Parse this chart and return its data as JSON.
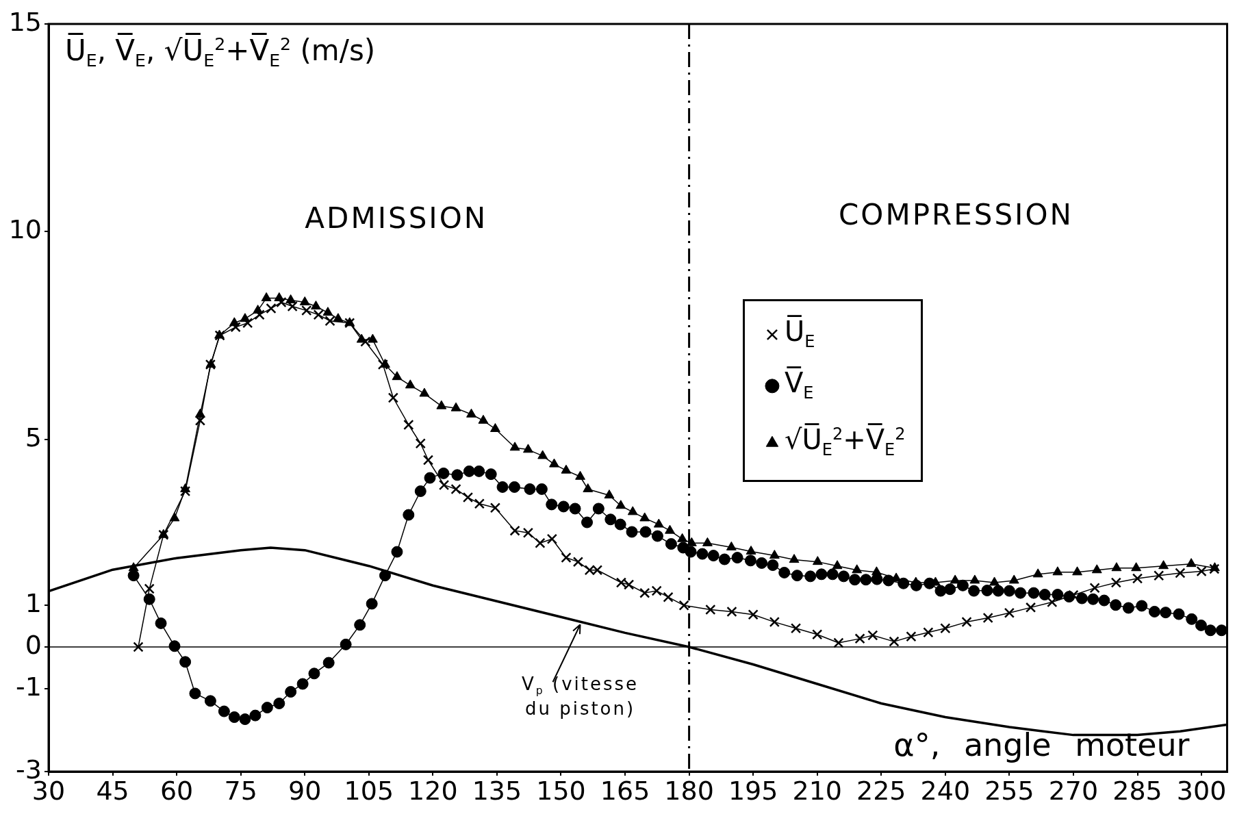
{
  "chart_data": {
    "type": "line",
    "ylabel": "U̅$_{E}$, V̅$_{E}$, √U̅$_{E}$$^{2}$+V̅$_{E}$$^{2}$ (m/s)",
    "xlabel": "α°, angle moteur",
    "annotations": [
      "ADMISSION",
      "COMPRESSION"
    ],
    "xlim": [
      30,
      306
    ],
    "xticks": [
      30,
      45,
      60,
      75,
      90,
      105,
      120,
      135,
      150,
      165,
      180,
      195,
      210,
      225,
      240,
      255,
      270,
      285,
      300
    ],
    "ylim": [
      -3,
      15
    ],
    "yticks": [
      15,
      10,
      5,
      1,
      0,
      -1,
      -3
    ],
    "grid": false,
    "legend": "right",
    "line_style": "solid",
    "ref_lines": [
      {
        "axis": "x",
        "value": 180,
        "line_style": "dashed",
        "color": "#000000"
      },
      {
        "axis": "y",
        "value": 0,
        "color": "#000000"
      }
    ],
    "series": [
      {
        "name": "U̅$_{E}$",
        "color": "#000000",
        "marker": "cross",
        "x": [
          51,
          53.6,
          56.9,
          62,
          65.5,
          67.9,
          70.1,
          73.8,
          76.6,
          79.4,
          82.1,
          84.5,
          87.1,
          90.4,
          93.2,
          95.9,
          100.5,
          104.2,
          108.3,
          110.7,
          114.3,
          117.1,
          118.9,
          122.6,
          125.4,
          128.2,
          130.9,
          134.6,
          139.2,
          142.3,
          145.1,
          147.9,
          151.2,
          154,
          156.7,
          158.5,
          164.1,
          165.9,
          169.6,
          172.4,
          175.1,
          178.8,
          185,
          190,
          195,
          200,
          205,
          210,
          215,
          220,
          223,
          228,
          232,
          236,
          240,
          245,
          250,
          255,
          260,
          265,
          270,
          275,
          280,
          285,
          290,
          295,
          300,
          303
        ],
        "values": [
          0,
          1.4,
          2.7,
          3.75,
          5.45,
          6.8,
          7.5,
          7.7,
          7.8,
          8,
          8.15,
          8.3,
          8.2,
          8.1,
          8,
          7.85,
          7.8,
          7.35,
          6.8,
          6,
          5.35,
          4.9,
          4.5,
          3.9,
          3.8,
          3.6,
          3.45,
          3.35,
          2.8,
          2.75,
          2.5,
          2.6,
          2.15,
          2.05,
          1.85,
          1.85,
          1.55,
          1.5,
          1.3,
          1.35,
          1.2,
          1,
          0.9,
          0.85,
          0.78,
          0.6,
          0.45,
          0.3,
          0.1,
          0.2,
          0.28,
          0.13,
          0.25,
          0.35,
          0.45,
          0.6,
          0.7,
          0.82,
          0.95,
          1.08,
          1.25,
          1.42,
          1.55,
          1.65,
          1.72,
          1.78,
          1.82,
          1.88
        ]
      },
      {
        "name": "V̅$_{E}$",
        "color": "#000000",
        "marker": "circle",
        "x": [
          49.9,
          53.6,
          56.3,
          59.5,
          62,
          64.3,
          67.9,
          71.1,
          73.5,
          76,
          78.4,
          81.2,
          84,
          86.7,
          89.5,
          92.2,
          95.6,
          99.6,
          102.9,
          105.7,
          108.8,
          111.6,
          114.3,
          117.1,
          119.3,
          122.5,
          125.7,
          128.5,
          130.8,
          133.6,
          136.3,
          139.1,
          142.7,
          145.5,
          147.8,
          150.6,
          153.3,
          156.1,
          158.8,
          161.6,
          163.9,
          166.6,
          169.8,
          172.6,
          175.8,
          178.6,
          180.4,
          183.1,
          185.7,
          188.3,
          191.3,
          194.4,
          197,
          199.6,
          202.3,
          205.3,
          208.4,
          211,
          213.6,
          216.2,
          218.8,
          221.4,
          224,
          226.7,
          230.2,
          233.2,
          236.3,
          238.9,
          241.1,
          244.1,
          246.7,
          249.8,
          252.4,
          255,
          257.6,
          260.7,
          263.3,
          266.3,
          269,
          272,
          274.6,
          277.2,
          279.9,
          282.9,
          286,
          289,
          291.6,
          294.7,
          297.7,
          299.9,
          302.1,
          304.7
        ],
        "values": [
          1.72,
          1.15,
          0.57,
          0.02,
          -0.36,
          -1.12,
          -1.3,
          -1.55,
          -1.69,
          -1.74,
          -1.65,
          -1.46,
          -1.36,
          -1.08,
          -0.89,
          -0.64,
          -0.38,
          0.06,
          0.53,
          1.04,
          1.72,
          2.29,
          3.18,
          3.75,
          4.07,
          4.18,
          4.14,
          4.23,
          4.23,
          4.16,
          3.85,
          3.85,
          3.8,
          3.8,
          3.43,
          3.38,
          3.33,
          3,
          3.33,
          3.07,
          2.95,
          2.77,
          2.77,
          2.67,
          2.48,
          2.39,
          2.29,
          2.24,
          2.2,
          2.11,
          2.15,
          2.08,
          2.02,
          1.97,
          1.79,
          1.72,
          1.7,
          1.75,
          1.75,
          1.7,
          1.62,
          1.62,
          1.63,
          1.6,
          1.53,
          1.48,
          1.53,
          1.35,
          1.39,
          1.48,
          1.35,
          1.36,
          1.35,
          1.35,
          1.3,
          1.3,
          1.26,
          1.26,
          1.21,
          1.17,
          1.15,
          1.12,
          1.01,
          0.94,
          0.99,
          0.85,
          0.83,
          0.79,
          0.67,
          0.52,
          0.4,
          0.4
        ]
      },
      {
        "name": "√U̅$_{E}$$^{2}$+V̅$_{E}$$^{2}$",
        "color": "#000000",
        "marker": "triangle",
        "x": [
          49.9,
          56.9,
          59.5,
          62,
          65.5,
          68,
          70,
          73.5,
          76,
          79,
          81,
          84,
          86.7,
          90,
          92.6,
          95.4,
          97.8,
          100.5,
          103.3,
          105.9,
          108.8,
          111.6,
          114.7,
          118,
          122,
          125.4,
          129,
          131.8,
          134.6,
          139.2,
          142.3,
          145.7,
          148.4,
          151.2,
          154.5,
          156.3,
          161.3,
          164,
          166.8,
          169.6,
          172.9,
          175.5,
          178.4,
          180.6,
          184.3,
          189.9,
          194.5,
          200,
          204.6,
          210.1,
          214.7,
          219.3,
          223.9,
          228.5,
          233.1,
          237.7,
          242.3,
          246.9,
          251.5,
          256.1,
          261.7,
          266.3,
          270.9,
          275.5,
          280.1,
          284.7,
          291.1,
          297.6,
          303.1
        ],
        "values": [
          1.9,
          2.7,
          3.1,
          3.8,
          5.6,
          6.8,
          7.5,
          7.8,
          7.9,
          8.1,
          8.4,
          8.4,
          8.35,
          8.3,
          8.2,
          8.05,
          7.9,
          7.8,
          7.4,
          7.4,
          6.8,
          6.5,
          6.3,
          6.1,
          5.8,
          5.75,
          5.6,
          5.45,
          5.25,
          4.8,
          4.75,
          4.6,
          4.4,
          4.25,
          4.1,
          3.8,
          3.65,
          3.4,
          3.25,
          3.1,
          2.95,
          2.8,
          2.6,
          2.5,
          2.5,
          2.4,
          2.3,
          2.2,
          2.1,
          2.05,
          1.95,
          1.85,
          1.8,
          1.65,
          1.55,
          1.55,
          1.6,
          1.6,
          1.55,
          1.6,
          1.75,
          1.8,
          1.8,
          1.85,
          1.9,
          1.9,
          1.95,
          2,
          1.9
        ]
      },
      {
        "name": "V$_{p}$ (vitesse du piston)",
        "color": "#000000",
        "marker": "none",
        "x": [
          30,
          45,
          60,
          75,
          82,
          90,
          105,
          120,
          135,
          150,
          165,
          180,
          195,
          210,
          225,
          240,
          255,
          270,
          285,
          295,
          306
        ],
        "values": [
          1.34,
          1.86,
          2.14,
          2.33,
          2.39,
          2.33,
          1.95,
          1.48,
          1.1,
          0.72,
          0.34,
          0,
          -0.42,
          -0.89,
          -1.36,
          -1.69,
          -1.93,
          -2.12,
          -2.12,
          -2.03,
          -1.87
        ]
      }
    ]
  }
}
